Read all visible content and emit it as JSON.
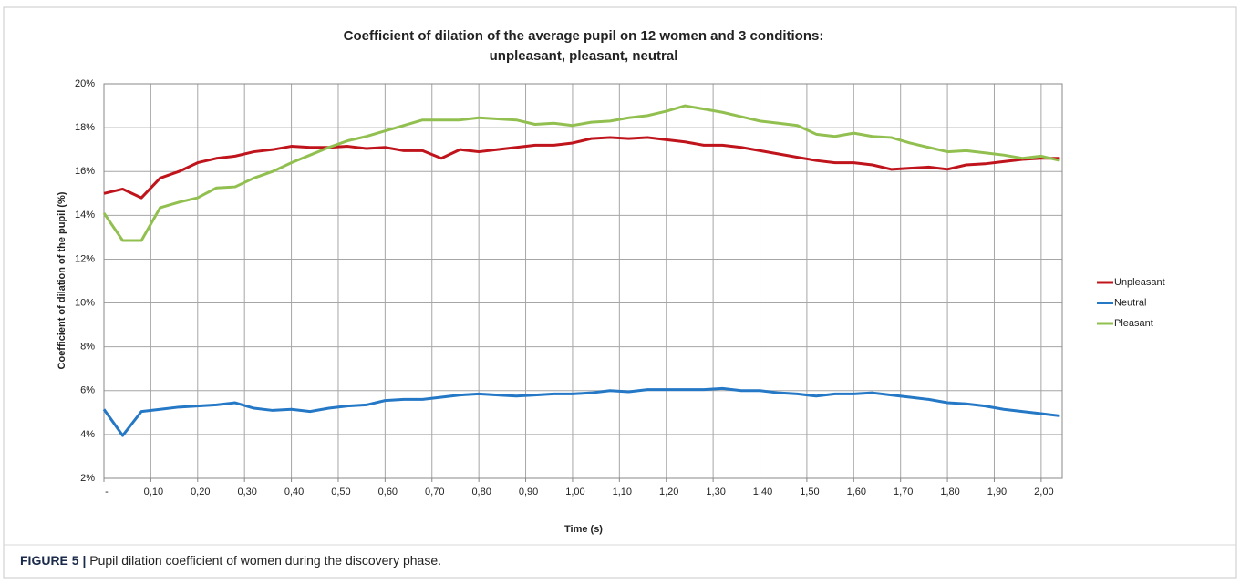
{
  "chart_data": {
    "type": "line",
    "title": "Coefficient of dilation of the average pupil on 12 women and 3 conditions:",
    "subtitle": "unpleasant, pleasant, neutral",
    "x_label": "Time (s)",
    "y_label": "Coefficient of dilation of the pupil (%)",
    "caption_label": "FIGURE 5 |",
    "caption": "Pupil dilation coefficient of women during the discovery phase.",
    "x": [
      0,
      0.04,
      0.08,
      0.12,
      0.16,
      0.2,
      0.24,
      0.28,
      0.32,
      0.36,
      0.4,
      0.44,
      0.48,
      0.52,
      0.56,
      0.6,
      0.64,
      0.68,
      0.72,
      0.76,
      0.8,
      0.84,
      0.88,
      0.92,
      0.96,
      1,
      1.04,
      1.08,
      1.12,
      1.16,
      1.2,
      1.24,
      1.28,
      1.32,
      1.36,
      1.4,
      1.44,
      1.48,
      1.52,
      1.56,
      1.6,
      1.64,
      1.68,
      1.72,
      1.76,
      1.8,
      1.84,
      1.88,
      1.92,
      1.96,
      2,
      2.04
    ],
    "series": [
      {
        "name": "Unpleasant",
        "color": "#c0141c",
        "values": [
          15.0,
          15.2,
          14.8,
          15.7,
          16.0,
          16.4,
          16.6,
          16.7,
          16.9,
          17.0,
          17.15,
          17.1,
          17.1,
          17.15,
          17.05,
          17.1,
          16.95,
          16.95,
          16.6,
          17.0,
          16.9,
          17.0,
          17.1,
          17.2,
          17.2,
          17.3,
          17.5,
          17.55,
          17.5,
          17.55,
          17.45,
          17.35,
          17.2,
          17.2,
          17.1,
          16.95,
          16.8,
          16.65,
          16.5,
          16.4,
          16.4,
          16.3,
          16.1,
          16.15,
          16.2,
          16.1,
          16.3,
          16.35,
          16.45,
          16.55,
          16.6,
          16.6
        ]
      },
      {
        "name": "Neutral",
        "color": "#2478c6",
        "values": [
          5.15,
          3.95,
          5.05,
          5.15,
          5.25,
          5.3,
          5.35,
          5.45,
          5.2,
          5.1,
          5.15,
          5.05,
          5.2,
          5.3,
          5.35,
          5.55,
          5.6,
          5.6,
          5.7,
          5.8,
          5.85,
          5.8,
          5.75,
          5.8,
          5.85,
          5.85,
          5.9,
          6.0,
          5.95,
          6.05,
          6.05,
          6.05,
          6.05,
          6.1,
          6.0,
          6.0,
          5.9,
          5.85,
          5.75,
          5.85,
          5.85,
          5.9,
          5.8,
          5.7,
          5.6,
          5.45,
          5.4,
          5.3,
          5.15,
          5.05,
          4.95,
          4.85
        ]
      },
      {
        "name": "Pleasant",
        "color": "#92c050",
        "values": [
          14.1,
          12.85,
          12.85,
          14.35,
          14.6,
          14.8,
          15.25,
          15.3,
          15.7,
          16.0,
          16.4,
          16.75,
          17.1,
          17.4,
          17.6,
          17.85,
          18.1,
          18.35,
          18.35,
          18.35,
          18.45,
          18.4,
          18.35,
          18.15,
          18.2,
          18.1,
          18.25,
          18.3,
          18.45,
          18.55,
          18.75,
          19.0,
          18.85,
          18.7,
          18.5,
          18.3,
          18.2,
          18.1,
          17.7,
          17.6,
          17.75,
          17.6,
          17.55,
          17.3,
          17.1,
          16.9,
          16.95,
          16.85,
          16.75,
          16.6,
          16.7,
          16.5
        ]
      }
    ],
    "xlim": [
      0,
      2.045
    ],
    "ylim": [
      2,
      20
    ],
    "xticks": [
      {
        "value": 0,
        "label": "-"
      },
      {
        "value": 0.1,
        "label": "0,10"
      },
      {
        "value": 0.2,
        "label": "0,20"
      },
      {
        "value": 0.3,
        "label": "0,30"
      },
      {
        "value": 0.4,
        "label": "0,40"
      },
      {
        "value": 0.5,
        "label": "0,50"
      },
      {
        "value": 0.6,
        "label": "0,60"
      },
      {
        "value": 0.7,
        "label": "0,70"
      },
      {
        "value": 0.8,
        "label": "0,80"
      },
      {
        "value": 0.9,
        "label": "0,90"
      },
      {
        "value": 1,
        "label": "1,00"
      },
      {
        "value": 1.1,
        "label": "1,10"
      },
      {
        "value": 1.2,
        "label": "1,20"
      },
      {
        "value": 1.3,
        "label": "1,30"
      },
      {
        "value": 1.4,
        "label": "1,40"
      },
      {
        "value": 1.5,
        "label": "1,50"
      },
      {
        "value": 1.6,
        "label": "1,60"
      },
      {
        "value": 1.7,
        "label": "1,70"
      },
      {
        "value": 1.8,
        "label": "1,80"
      },
      {
        "value": 1.9,
        "label": "1,90"
      },
      {
        "value": 2,
        "label": "2,00"
      }
    ],
    "yticks": [
      {
        "value": 2,
        "label": "2%"
      },
      {
        "value": 4,
        "label": "4%"
      },
      {
        "value": 6,
        "label": "6%"
      },
      {
        "value": 8,
        "label": "8%"
      },
      {
        "value": 10,
        "label": "10%"
      },
      {
        "value": 12,
        "label": "12%"
      },
      {
        "value": 14,
        "label": "14%"
      },
      {
        "value": 16,
        "label": "16%"
      },
      {
        "value": 18,
        "label": "18%"
      },
      {
        "value": 20,
        "label": "20%"
      }
    ],
    "grid": true,
    "legend": "right"
  }
}
